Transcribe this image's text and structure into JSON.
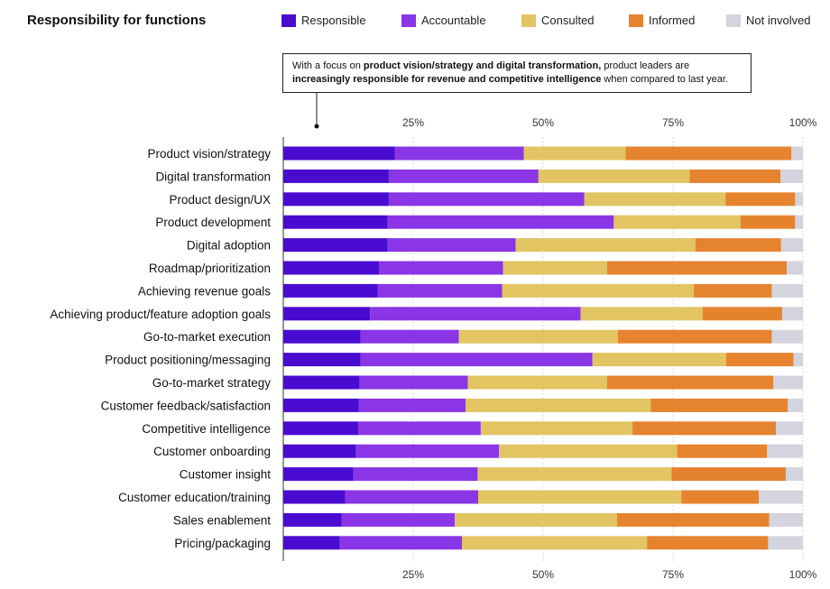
{
  "chart_data": {
    "type": "bar",
    "orientation": "horizontal",
    "stacked": true,
    "title": "Responsibility for functions",
    "annotation": {
      "parts": [
        {
          "text": "With a focus on ",
          "bold": false
        },
        {
          "text": "product vision/strategy and digital transformation,",
          "bold": true
        },
        {
          "text": " product leaders are ",
          "bold": false
        },
        {
          "text": "increasingly responsible for revenue and competitive intelligence",
          "bold": true
        },
        {
          "text": " when compared to last year.",
          "bold": false
        }
      ]
    },
    "xlim": [
      0,
      100
    ],
    "ticks": [
      0,
      25,
      50,
      75,
      100
    ],
    "tick_labels": [
      "",
      "25%",
      "50%",
      "75%",
      "100%"
    ],
    "legend_position": "top",
    "categories": [
      "Product vision/strategy",
      "Digital transformation",
      "Product design/UX",
      "Product development",
      "Digital adoption",
      "Roadmap/prioritization",
      "Achieving revenue goals",
      "Achieving product/feature adoption goals",
      "Go-to-market execution",
      "Product positioning/messaging",
      "Go-to-market strategy",
      "Customer feedback/satisfaction",
      "Competitive intelligence",
      "Customer onboarding",
      "Customer insight",
      "Customer education/training",
      "Sales enablement",
      "Pricing/packaging"
    ],
    "series": [
      {
        "name": "Responsible",
        "color": "#4a0bd0",
        "values": [
          21.5,
          20.3,
          20.3,
          20.1,
          20.1,
          18.4,
          18.2,
          16.7,
          14.9,
          14.9,
          14.7,
          14.5,
          14.4,
          14.0,
          13.5,
          11.9,
          11.2,
          10.9
        ]
      },
      {
        "name": "Accountable",
        "color": "#8a35e6",
        "values": [
          24.8,
          28.8,
          37.6,
          43.5,
          24.6,
          23.9,
          23.9,
          40.5,
          18.9,
          44.6,
          20.8,
          20.6,
          23.6,
          27.5,
          23.9,
          25.6,
          21.8,
          23.5
        ]
      },
      {
        "name": "Consulted",
        "color": "#e2c462",
        "values": [
          19.6,
          29.1,
          27.2,
          24.4,
          34.6,
          20.0,
          36.9,
          23.5,
          30.6,
          25.7,
          26.8,
          35.6,
          29.2,
          34.3,
          37.3,
          39.1,
          31.2,
          35.6
        ]
      },
      {
        "name": "Informed",
        "color": "#e6832f",
        "values": [
          31.9,
          17.5,
          13.4,
          10.5,
          16.5,
          34.6,
          15.0,
          15.3,
          29.6,
          13.0,
          32.0,
          26.4,
          27.6,
          17.3,
          22.0,
          14.9,
          29.3,
          23.3
        ]
      },
      {
        "name": "Not involved",
        "color": "#d3d4de",
        "values": [
          2.2,
          4.3,
          1.5,
          1.5,
          4.2,
          3.1,
          6.0,
          4.0,
          6.0,
          1.8,
          5.7,
          2.9,
          5.2,
          6.9,
          3.3,
          8.5,
          6.5,
          6.7
        ]
      }
    ]
  }
}
